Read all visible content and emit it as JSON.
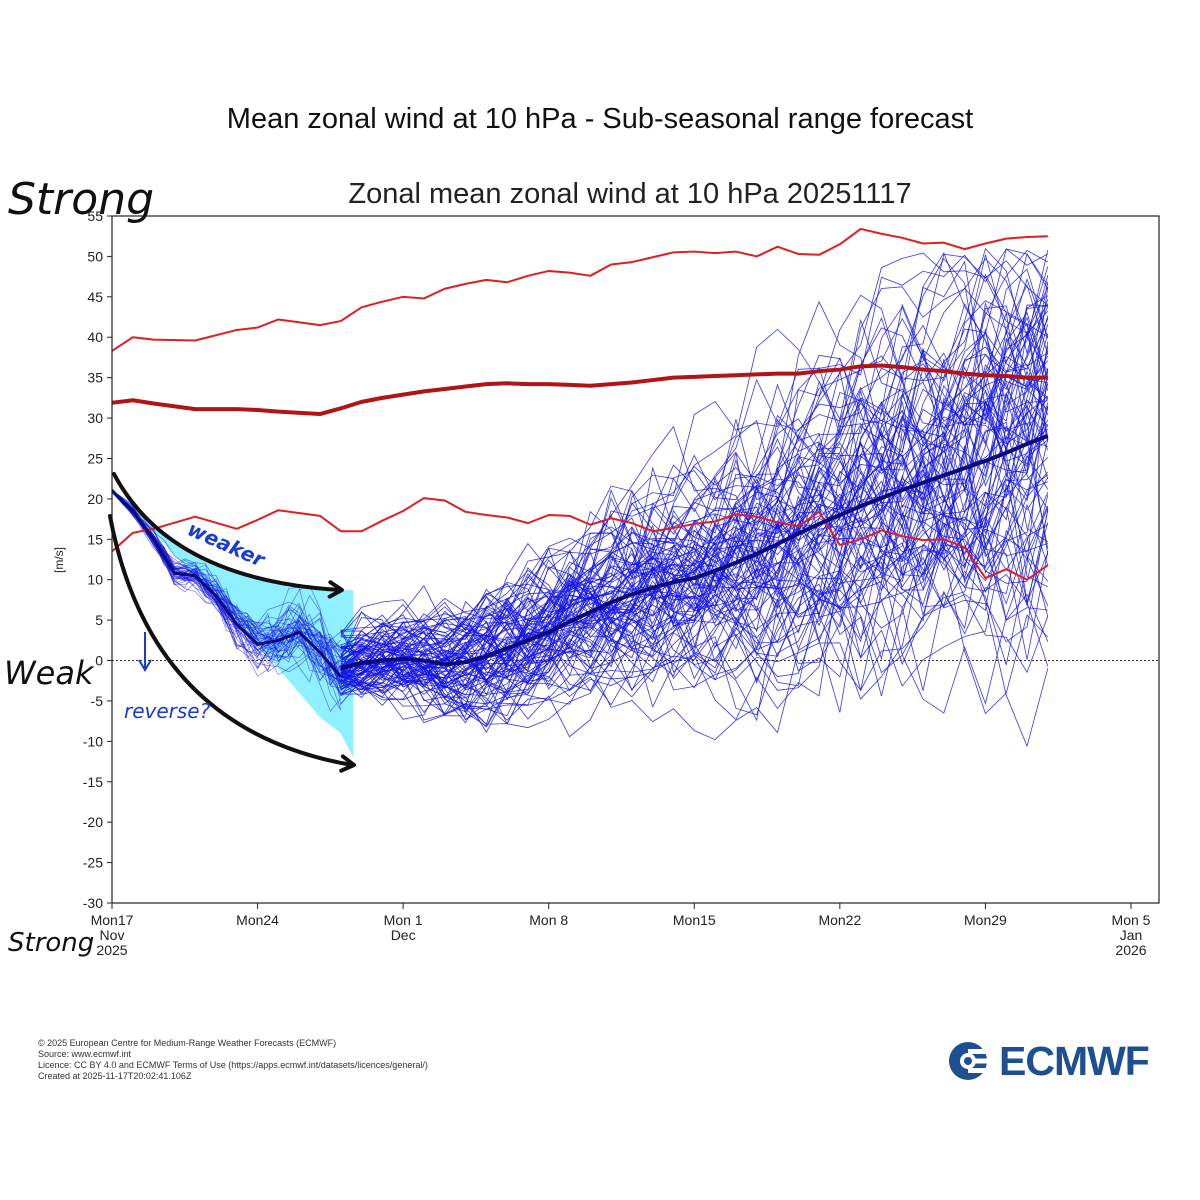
{
  "page_title": "Mean zonal wind at 10 hPa - Sub-seasonal range forecast",
  "chart_data": {
    "type": "line",
    "title": "Zonal mean zonal wind at 10 hPa 20251117",
    "ylabel": "[m/s]",
    "xlabel": "",
    "ylim": [
      -30,
      55
    ],
    "xlim": [
      0,
      49
    ],
    "yticks": [
      -30,
      -25,
      -20,
      -15,
      -10,
      -5,
      0,
      5,
      10,
      15,
      20,
      25,
      30,
      35,
      40,
      45,
      50,
      55
    ],
    "xticks": [
      {
        "x": 0,
        "lines": [
          "Mon17",
          "Nov",
          "2025"
        ]
      },
      {
        "x": 7,
        "lines": [
          "Mon24"
        ]
      },
      {
        "x": 14,
        "lines": [
          "Mon 1",
          "Dec"
        ]
      },
      {
        "x": 21,
        "lines": [
          "Mon 8"
        ]
      },
      {
        "x": 28,
        "lines": [
          "Mon15"
        ]
      },
      {
        "x": 35,
        "lines": [
          "Mon22"
        ]
      },
      {
        "x": 42,
        "lines": [
          "Mon29"
        ]
      },
      {
        "x": 49,
        "lines": [
          "Mon 5",
          "Jan",
          "2026"
        ]
      }
    ],
    "x_unit": "days since Mon 17 Nov 2025",
    "colors": {
      "ensemble": "#1414e6",
      "ensemble_mean": "#0a0a7a",
      "climatology": "#e01e1e",
      "climatology_mean": "#b01414",
      "shade": "#8ff0ff",
      "annotation_blue": "#1a3ad6"
    },
    "series": [
      {
        "role": "climatology_max",
        "x": [
          0,
          1,
          2,
          4,
          6,
          7,
          8,
          10,
          11,
          12,
          13,
          14,
          15,
          16,
          17,
          18,
          19,
          20,
          21,
          22,
          23,
          24,
          25,
          26,
          27,
          28,
          29,
          30,
          31,
          32,
          33,
          34,
          35,
          36,
          37,
          38,
          39,
          40,
          41,
          42,
          43,
          44,
          45
        ],
        "values": [
          38.3,
          40.0,
          39.7,
          39.6,
          40.9,
          41.2,
          42.2,
          41.5,
          42.0,
          43.7,
          44.4,
          45.0,
          44.8,
          46.0,
          46.6,
          47.1,
          46.8,
          47.6,
          48.2,
          48.0,
          47.6,
          49.0,
          49.3,
          49.9,
          50.5,
          50.6,
          50.4,
          50.6,
          50.0,
          51.2,
          50.3,
          50.2,
          51.5,
          53.4,
          52.8,
          52.3,
          51.6,
          51.7,
          50.9,
          51.6,
          52.2,
          52.4,
          52.5
        ]
      },
      {
        "role": "climatology_mean",
        "x": [
          0,
          1,
          2,
          4,
          6,
          7,
          8,
          10,
          11,
          12,
          13,
          14,
          15,
          16,
          17,
          18,
          19,
          20,
          21,
          22,
          23,
          24,
          25,
          26,
          27,
          28,
          29,
          30,
          31,
          32,
          33,
          34,
          35,
          36,
          37,
          38,
          39,
          40,
          41,
          42,
          43,
          44,
          45
        ],
        "values": [
          31.9,
          32.2,
          31.8,
          31.1,
          31.1,
          31.0,
          30.8,
          30.5,
          31.2,
          32.0,
          32.5,
          32.9,
          33.3,
          33.6,
          33.9,
          34.2,
          34.3,
          34.2,
          34.2,
          34.1,
          34.0,
          34.2,
          34.4,
          34.7,
          35.0,
          35.1,
          35.2,
          35.3,
          35.4,
          35.5,
          35.5,
          35.8,
          36.0,
          36.4,
          36.5,
          36.3,
          36.0,
          35.8,
          35.5,
          35.3,
          35.2,
          35.0,
          35.0
        ]
      },
      {
        "role": "climatology_min",
        "x": [
          0,
          1,
          2,
          4,
          6,
          7,
          8,
          10,
          11,
          12,
          13,
          14,
          15,
          16,
          17,
          18,
          19,
          20,
          21,
          22,
          23,
          24,
          25,
          26,
          27,
          28,
          29,
          30,
          31,
          32,
          33,
          34,
          35,
          36,
          37,
          38,
          39,
          40,
          41,
          42,
          43,
          44,
          45
        ],
        "values": [
          13.5,
          15.8,
          16.3,
          17.8,
          16.3,
          17.4,
          18.6,
          17.9,
          16.0,
          16.0,
          17.3,
          18.5,
          20.1,
          19.8,
          18.4,
          18.0,
          17.7,
          17.0,
          18.0,
          17.9,
          16.8,
          17.6,
          17.0,
          16.0,
          16.4,
          16.9,
          17.2,
          18.1,
          17.8,
          17.1,
          16.6,
          18.4,
          14.3,
          15.0,
          16.1,
          15.4,
          14.9,
          15.0,
          14.0,
          10.2,
          11.3,
          10.0,
          11.8
        ]
      },
      {
        "role": "ensemble_mean_recent",
        "x": [
          0,
          1,
          2,
          3,
          4,
          5,
          6,
          7,
          8,
          9,
          10,
          11
        ],
        "values": [
          21.0,
          18.5,
          15.0,
          10.8,
          10.5,
          8.0,
          4.5,
          2.0,
          2.5,
          3.5,
          1.0,
          -2.0
        ]
      },
      {
        "role": "ensemble_mean",
        "x": [
          11,
          12,
          13,
          14,
          15,
          16,
          17,
          18,
          19,
          20,
          21,
          22,
          23,
          24,
          25,
          26,
          27,
          28,
          29,
          30,
          31,
          32,
          33,
          34,
          35,
          36,
          37,
          38,
          39,
          40,
          41,
          42,
          43,
          44,
          45
        ],
        "values": [
          -1.0,
          -0.3,
          0.0,
          0.2,
          0.0,
          -0.5,
          -0.2,
          0.5,
          1.5,
          2.5,
          3.5,
          4.8,
          6.0,
          7.2,
          8.2,
          9.0,
          9.7,
          10.2,
          11.1,
          12.1,
          13.2,
          14.4,
          15.7,
          16.9,
          18.0,
          19.1,
          20.1,
          21.1,
          22.0,
          22.9,
          23.8,
          24.7,
          25.7,
          26.8,
          27.8
        ]
      }
    ]
  },
  "annotations": {
    "strong_top": "Strong",
    "weak": "Weak",
    "strong_bottom": "Strong",
    "weaker": "weaker",
    "reverse": "reverse?"
  },
  "footer": {
    "line1": "© 2025 European Centre for Medium-Range Weather Forecasts (ECMWF)",
    "line2": "Source: www.ecmwf.int",
    "line3": "Licence: CC BY 4.0 and ECMWF Terms of Use (https://apps.ecmwf.int/datasets/licences/general/)",
    "line4": "Created at 2025-11-17T20:02:41.106Z"
  },
  "logo": {
    "text": "ECMWF"
  }
}
